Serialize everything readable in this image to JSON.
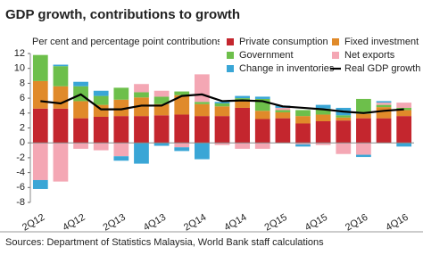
{
  "chart_data": {
    "type": "bar",
    "title": "GDP growth, contributions to growth",
    "subtitle": "Per cent and percentage point contributions",
    "source": "Sources: Department of Statistics Malaysia, World Bank staff calculations",
    "stacked": true,
    "legend": "top-right",
    "categories": [
      "2Q12",
      null,
      "4Q12",
      null,
      "2Q13",
      null,
      "4Q13",
      null,
      "2Q14",
      null,
      "4Q14",
      null,
      "2Q15",
      null,
      "4Q15",
      null,
      "2Q16",
      null,
      "4Q16"
    ],
    "series": [
      {
        "name": "Private consumption",
        "color": "#c4262e",
        "values": [
          4.6,
          4.6,
          3.3,
          3.5,
          3.6,
          3.6,
          3.7,
          3.8,
          3.6,
          3.6,
          4.7,
          3.2,
          3.3,
          2.6,
          2.9,
          3.0,
          3.3,
          3.3,
          3.6
        ]
      },
      {
        "name": "Fixed investment",
        "color": "#e08a2a",
        "values": [
          3.7,
          3.0,
          2.3,
          1.6,
          2.2,
          2.5,
          1.5,
          2.6,
          1.6,
          1.3,
          1.0,
          1.1,
          0.8,
          1.0,
          0.9,
          0.4,
          0.6,
          1.5,
          0.8
        ]
      },
      {
        "name": "Government",
        "color": "#6dbf4b",
        "values": [
          3.5,
          2.7,
          2.0,
          1.2,
          1.6,
          0.7,
          1.0,
          0.5,
          0.3,
          0.4,
          0.3,
          1.6,
          0.3,
          0.8,
          0.8,
          0.3,
          2.0,
          0.3,
          0.3
        ]
      },
      {
        "name": "Net exports",
        "color": "#f4a7b4",
        "values": [
          -5.0,
          -5.2,
          -0.8,
          -1.0,
          -1.8,
          1.1,
          0.8,
          -0.6,
          3.7,
          -0.3,
          -0.8,
          -0.8,
          0.3,
          -0.2,
          -0.3,
          -1.5,
          -1.6,
          0.3,
          0.7
        ]
      },
      {
        "name": "Change in inventories",
        "color": "#3aa6d6",
        "values": [
          -1.2,
          0.2,
          0.6,
          0.7,
          -0.6,
          -2.8,
          -0.4,
          -0.5,
          -2.2,
          0.2,
          0.3,
          0.3,
          0.3,
          -0.3,
          0.5,
          1.0,
          -0.3,
          0.2,
          -0.5
        ]
      },
      {
        "name": "Real GDP growth",
        "color": "#000000",
        "type": "line",
        "values": [
          5.6,
          5.3,
          6.5,
          4.5,
          4.5,
          5.0,
          5.0,
          6.3,
          6.5,
          5.6,
          5.7,
          5.6,
          4.9,
          4.7,
          4.5,
          4.2,
          4.0,
          4.3,
          4.5
        ]
      }
    ],
    "ylim": [
      -8,
      12
    ],
    "yticks": [
      -8,
      -6,
      -4,
      -2,
      0,
      2,
      4,
      6,
      8,
      10,
      12
    ]
  }
}
